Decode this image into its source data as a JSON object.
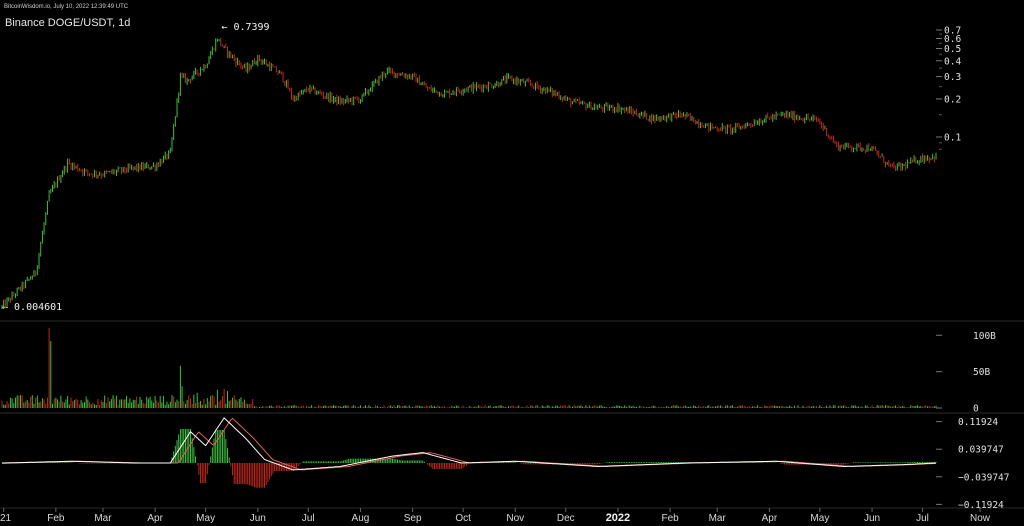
{
  "watermark": "BitcoinWisdom.io, July 10, 2022 12:39:49 UTC",
  "chart_data": {
    "type": "candlestick",
    "title": "Binance DOGE/USDT, 1d",
    "price_scale": "log",
    "price_axis_ticks": [
      "0.7",
      "0.6",
      "0.5",
      "0.4",
      "0.3",
      "0.2",
      "0.1"
    ],
    "price_axis_values": [
      0.7,
      0.6,
      0.5,
      0.4,
      0.3,
      0.2,
      0.1
    ],
    "annotations": {
      "high_label": "← 0.7399",
      "high_value": 0.7399,
      "low_label": "← 0.004601",
      "low_value": 0.004601
    },
    "x_labels": [
      "21",
      "Feb",
      "Mar",
      "Apr",
      "May",
      "Jun",
      "Jul",
      "Aug",
      "Sep",
      "Oct",
      "Nov",
      "Dec",
      "2022",
      "Feb",
      "Mar",
      "Apr",
      "May",
      "Jun",
      "Jul",
      "Now"
    ],
    "price_series": {
      "dates": [
        "2021-01-01",
        "2021-01-20",
        "2021-01-28",
        "2021-02-08",
        "2021-02-20",
        "2021-03-01",
        "2021-03-20",
        "2021-04-01",
        "2021-04-10",
        "2021-04-16",
        "2021-04-20",
        "2021-05-01",
        "2021-05-08",
        "2021-05-12",
        "2021-05-19",
        "2021-05-25",
        "2021-06-01",
        "2021-06-15",
        "2021-06-22",
        "2021-07-01",
        "2021-07-20",
        "2021-08-01",
        "2021-08-16",
        "2021-09-01",
        "2021-09-10",
        "2021-09-20",
        "2021-10-01",
        "2021-10-20",
        "2021-10-28",
        "2021-11-10",
        "2021-11-25",
        "2021-12-04",
        "2021-12-20",
        "2022-01-01",
        "2022-01-22",
        "2022-02-08",
        "2022-02-24",
        "2022-03-10",
        "2022-03-30",
        "2022-04-10",
        "2022-04-30",
        "2022-05-11",
        "2022-05-31",
        "2022-06-13",
        "2022-06-18",
        "2022-06-30",
        "2022-07-09"
      ],
      "close": [
        0.0047,
        0.0085,
        0.035,
        0.062,
        0.052,
        0.051,
        0.057,
        0.059,
        0.075,
        0.3,
        0.28,
        0.37,
        0.6,
        0.5,
        0.4,
        0.34,
        0.42,
        0.31,
        0.2,
        0.24,
        0.19,
        0.2,
        0.33,
        0.3,
        0.24,
        0.22,
        0.24,
        0.26,
        0.29,
        0.26,
        0.22,
        0.19,
        0.17,
        0.17,
        0.14,
        0.15,
        0.12,
        0.115,
        0.14,
        0.15,
        0.135,
        0.085,
        0.082,
        0.057,
        0.058,
        0.068,
        0.07
      ]
    },
    "volume": {
      "ticks": [
        "100B",
        "50B",
        "0"
      ],
      "tick_values": [
        100,
        50,
        0
      ],
      "unit": "B",
      "spikes": [
        {
          "date": "2021-01-28",
          "value": 110
        },
        {
          "date": "2021-01-29",
          "value": 92
        },
        {
          "date": "2021-04-16",
          "value": 58
        },
        {
          "date": "2021-04-17",
          "value": 30
        },
        {
          "date": "2021-05-08",
          "value": 25
        }
      ]
    },
    "macd": {
      "ticks": [
        "0.11924",
        "0.039747",
        "−0.039747",
        "−0.11924"
      ],
      "tick_values": [
        0.11924,
        0.039747,
        -0.039747,
        -0.11924
      ],
      "shape_points": [
        {
          "date": "2021-01-01",
          "value": 0.0
        },
        {
          "date": "2021-02-10",
          "value": 0.005
        },
        {
          "date": "2021-03-20",
          "value": 0.0
        },
        {
          "date": "2021-04-10",
          "value": 0.0
        },
        {
          "date": "2021-04-22",
          "value": 0.09
        },
        {
          "date": "2021-05-01",
          "value": 0.05
        },
        {
          "date": "2021-05-12",
          "value": 0.13
        },
        {
          "date": "2021-05-25",
          "value": 0.07
        },
        {
          "date": "2021-06-05",
          "value": 0.01
        },
        {
          "date": "2021-06-22",
          "value": -0.02
        },
        {
          "date": "2021-07-20",
          "value": -0.01
        },
        {
          "date": "2021-08-20",
          "value": 0.02
        },
        {
          "date": "2021-09-07",
          "value": 0.03
        },
        {
          "date": "2021-09-30",
          "value": 0.0
        },
        {
          "date": "2021-11-01",
          "value": 0.005
        },
        {
          "date": "2021-12-20",
          "value": -0.01
        },
        {
          "date": "2022-02-10",
          "value": 0.0
        },
        {
          "date": "2022-04-05",
          "value": 0.005
        },
        {
          "date": "2022-05-15",
          "value": -0.01
        },
        {
          "date": "2022-06-18",
          "value": -0.005
        },
        {
          "date": "2022-07-09",
          "value": 0.0
        }
      ]
    },
    "colors": {
      "up": "#3fbf3f",
      "down": "#c0291f",
      "background": "#000000",
      "grid": "#2a2a2a",
      "text": "#e0e0e0",
      "line1": "#ffffff",
      "line2": "#e06060"
    }
  }
}
